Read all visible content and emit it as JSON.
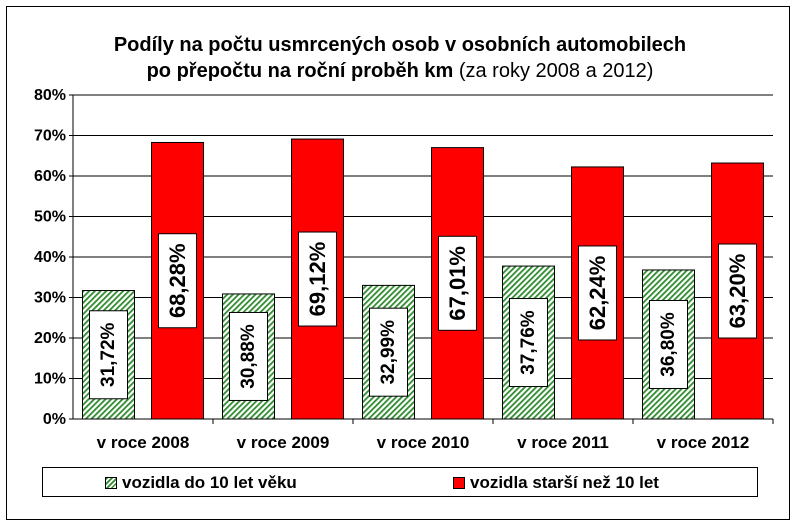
{
  "title_line1": "Podíly na počtu usmrcených osob v osobních automobilech",
  "title_line2_bold": "po přepočtu na roční proběh km",
  "title_line2_normal": "(za roky 2008 a 2012)",
  "chart_data": {
    "type": "bar",
    "categories": [
      "v roce 2008",
      "v roce 2009",
      "v roce 2010",
      "v roce 2011",
      "v roce 2012"
    ],
    "series": [
      {
        "name": "vozidla do 10 let věku",
        "values": [
          31.72,
          30.88,
          32.99,
          37.76,
          36.8
        ],
        "labels": [
          "31,72%",
          "30,88%",
          "32,99%",
          "37,76%",
          "36,80%"
        ],
        "color": "#2e8b2e",
        "pattern": "diagonal-hatch"
      },
      {
        "name": "vozidla starší než 10 let",
        "values": [
          68.28,
          69.12,
          67.01,
          62.24,
          63.2
        ],
        "labels": [
          "68,28%",
          "69,12%",
          "67,01%",
          "62,24%",
          "63,20%"
        ],
        "color": "#ff0000"
      }
    ],
    "ylim": [
      0,
      80
    ],
    "yticks": [
      "0%",
      "10%",
      "20%",
      "30%",
      "40%",
      "50%",
      "60%",
      "70%",
      "80%"
    ],
    "grid": true,
    "legend": "bottom"
  }
}
